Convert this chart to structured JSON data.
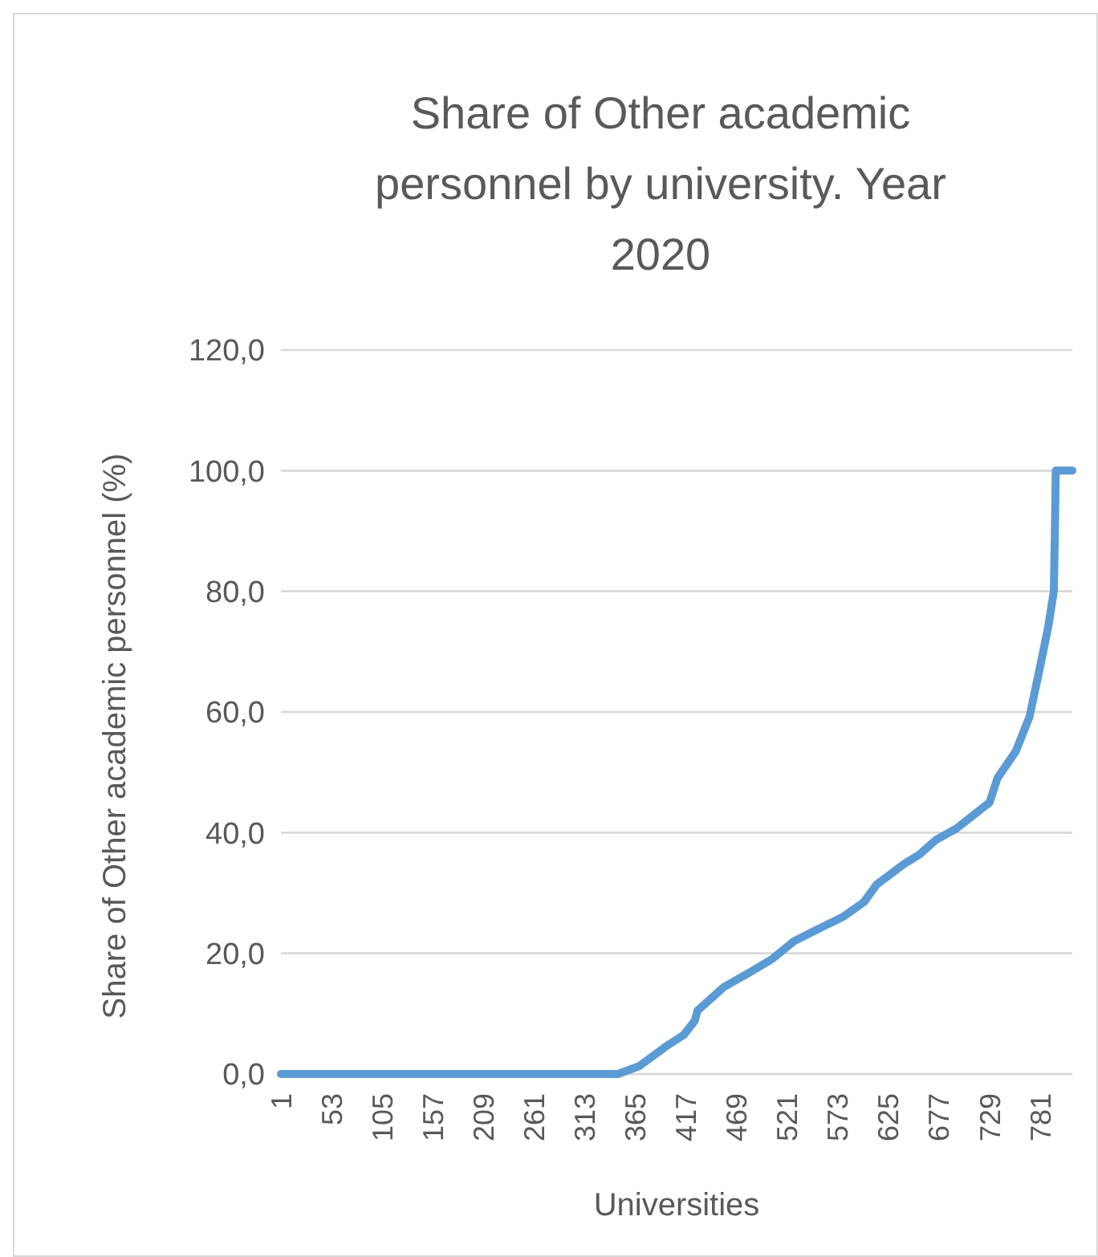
{
  "chart_data": {
    "type": "line",
    "title": "Share of Other academic personnel by university. Year 2020",
    "xlabel": "Universities",
    "ylabel": "Share of Other academic personnel (%)",
    "x": [
      1,
      319,
      347,
      369,
      396,
      415,
      426,
      429,
      456,
      479,
      506,
      528,
      555,
      578,
      600,
      613,
      641,
      657,
      674,
      695,
      729,
      737,
      756,
      770,
      781,
      789,
      795,
      796,
      797,
      814
    ],
    "series": [
      {
        "color": "#5b9bd5",
        "values": [
          0,
          0,
          0,
          1.3,
          4.5,
          6.5,
          8.8,
          10.5,
          14.4,
          16.5,
          19.1,
          22,
          24.2,
          26,
          28.5,
          31.4,
          34.8,
          36.4,
          38.8,
          40.7,
          45,
          49,
          53.5,
          59.2,
          67.6,
          73.9,
          80,
          88.9,
          100,
          100
        ]
      }
    ],
    "xlim": [
      1,
      814
    ],
    "xticks": [
      1,
      53,
      105,
      157,
      209,
      261,
      313,
      365,
      417,
      469,
      521,
      573,
      625,
      677,
      729,
      781
    ],
    "ylim": [
      0,
      120
    ],
    "yticks": [
      {
        "value": 0,
        "label": "0,0"
      },
      {
        "value": 20,
        "label": "20,0"
      },
      {
        "value": 40,
        "label": "40,0"
      },
      {
        "value": 60,
        "label": "60,0"
      },
      {
        "value": 80,
        "label": "80,0"
      },
      {
        "value": 100,
        "label": "100,0"
      },
      {
        "value": 120,
        "label": "120,0"
      }
    ],
    "grid": "y",
    "marker": "none",
    "line_style": "solid"
  }
}
